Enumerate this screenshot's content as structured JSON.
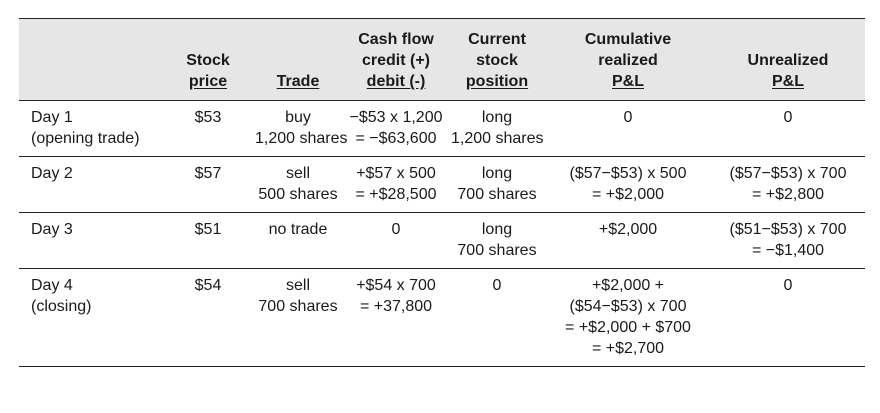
{
  "headers": [
    {
      "lines": [
        ""
      ]
    },
    {
      "lines": [
        "Stock",
        "price"
      ]
    },
    {
      "lines": [
        "Trade"
      ]
    },
    {
      "lines": [
        "Cash flow",
        "credit (+)",
        "debit (-)"
      ]
    },
    {
      "lines": [
        "Current",
        "stock",
        "position"
      ]
    },
    {
      "lines": [
        "Cumulative",
        "realized",
        "P&L"
      ]
    },
    {
      "lines": [
        "Unrealized",
        "P&L"
      ]
    }
  ],
  "rows": [
    {
      "day": [
        "Day 1",
        "(opening trade)"
      ],
      "price": [
        "$53"
      ],
      "trade": [
        "buy",
        "1,200 shares"
      ],
      "cash": [
        "−$53 x 1,200",
        "= −$63,600"
      ],
      "position": [
        "long",
        "1,200 shares"
      ],
      "realized": [
        "0"
      ],
      "unrealized": [
        "0"
      ]
    },
    {
      "day": [
        "Day 2"
      ],
      "price": [
        "$57"
      ],
      "trade": [
        "sell",
        "500 shares"
      ],
      "cash": [
        "+$57 x 500",
        "= +$28,500"
      ],
      "position": [
        "long",
        "700 shares"
      ],
      "realized": [
        "($57−$53) x 500",
        "= +$2,000"
      ],
      "unrealized": [
        "($57−$53) x 700",
        "= +$2,800"
      ]
    },
    {
      "day": [
        "Day 3"
      ],
      "price": [
        "$51"
      ],
      "trade": [
        "no trade"
      ],
      "cash": [
        "0"
      ],
      "position": [
        "long",
        "700 shares"
      ],
      "realized": [
        "+$2,000"
      ],
      "unrealized": [
        "($51−$53) x 700",
        "= −$1,400"
      ]
    },
    {
      "day": [
        "Day 4",
        "(closing)"
      ],
      "price": [
        "$54"
      ],
      "trade": [
        "sell",
        "700 shares"
      ],
      "cash": [
        "+$54 x 700",
        "= +37,800"
      ],
      "position": [
        "0"
      ],
      "realized": [
        "+$2,000 +",
        "($54−$53) x 700",
        "= +$2,000 + $700",
        "= +$2,700"
      ],
      "unrealized": [
        "0"
      ]
    }
  ]
}
